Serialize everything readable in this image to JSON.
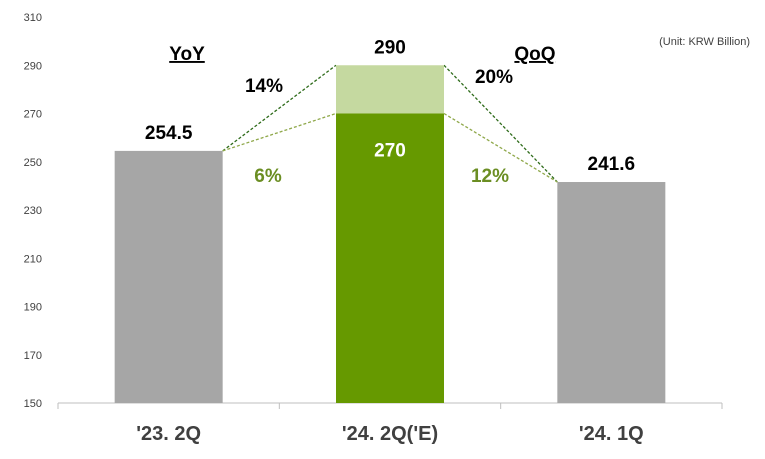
{
  "chart_data": {
    "type": "bar",
    "unit_label": "(Unit: KRW Billion)",
    "categories": [
      "'23. 2Q",
      "'24. 2Q('E)",
      "'24. 1Q"
    ],
    "values": [
      254.5,
      290,
      241.6
    ],
    "lower_segment": {
      "category_index": 1,
      "value": 270,
      "label": "270"
    },
    "value_labels": [
      "254.5",
      "290",
      "241.6"
    ],
    "ylim": [
      150,
      310
    ],
    "yticks": [
      150,
      170,
      190,
      210,
      230,
      250,
      270,
      290,
      310
    ],
    "headers": {
      "yoy": "YoY",
      "qoq": "QoQ"
    },
    "growth_labels": {
      "yoy_high": "14%",
      "yoy_low": "6%",
      "qoq_high": "20%",
      "qoq_low": "12%"
    },
    "colors": {
      "gray_bar": "#a6a6a6",
      "green_dark": "#669900",
      "green_light": "#c5d9a0",
      "green_text": "#6b8e23",
      "black_dash": "#2e6b1a",
      "light_dash": "#8fa84a"
    },
    "grid": false,
    "legend": "none"
  }
}
